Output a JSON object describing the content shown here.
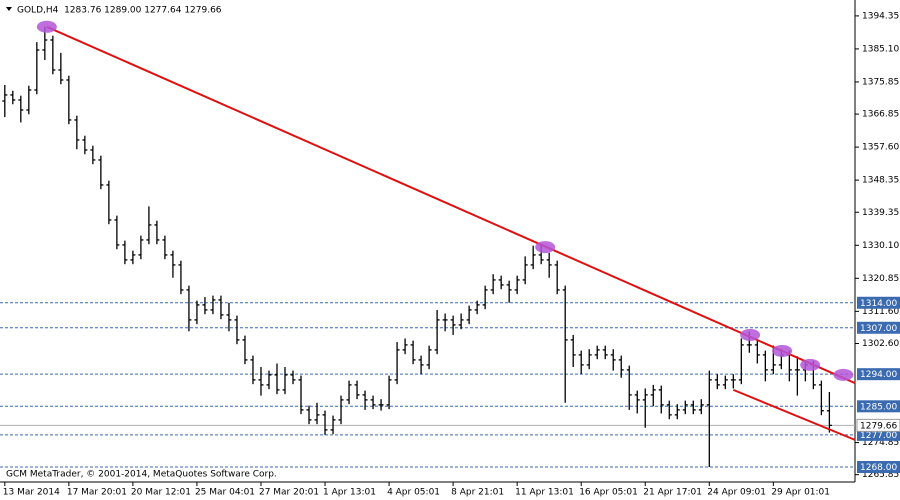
{
  "chart_data": {
    "type": "ohlc",
    "title": "GOLD,H4  1283.76 1289.00 1277.64 1279.66",
    "footer": "GCM MetaTrader, © 2001-2014, MetaQuotes Software Corp.",
    "color": "#000000",
    "categories": [
      "13 Mar 2014",
      null,
      null,
      null,
      null,
      null,
      null,
      null,
      "17 Mar 20:01",
      null,
      null,
      null,
      null,
      null,
      null,
      null,
      "20 Mar 12:01",
      null,
      null,
      null,
      null,
      null,
      null,
      null,
      "25 Mar 04:01",
      null,
      null,
      null,
      null,
      null,
      null,
      null,
      "27 Mar 20:01",
      null,
      null,
      null,
      null,
      null,
      null,
      null,
      "1 Apr 13:01",
      null,
      null,
      null,
      null,
      null,
      null,
      null,
      "4 Apr 05:01",
      null,
      null,
      null,
      null,
      null,
      null,
      null,
      "8 Apr 21:01",
      null,
      null,
      null,
      null,
      null,
      null,
      null,
      "11 Apr 13:01",
      null,
      null,
      null,
      null,
      null,
      null,
      null,
      "16 Apr 05:01",
      null,
      null,
      null,
      null,
      null,
      null,
      null,
      "21 Apr 17:01",
      null,
      null,
      null,
      null,
      null,
      null,
      null,
      "24 Apr 09:01",
      null,
      null,
      null,
      null,
      null,
      null,
      null,
      "29 Apr 01:01",
      null,
      null,
      null,
      null,
      null,
      null,
      null
    ],
    "open": [
      1370.5,
      1372.2,
      1370.8,
      1368.0,
      1373.6,
      1384.8,
      1387.6,
      1379.2,
      1376.4,
      1365.2,
      1359.6,
      1356.8,
      1354.0,
      1347.0,
      1337.2,
      1330.2,
      1326.0,
      1327.4,
      1331.6,
      1335.8,
      1331.6,
      1327.4,
      1324.6,
      1317.6,
      1309.2,
      1313.4,
      1312.0,
      1314.8,
      1310.6,
      1309.2,
      1303.6,
      1298.0,
      1292.4,
      1291.0,
      1293.8,
      1289.6,
      1293.8,
      1292.4,
      1284.0,
      1281.2,
      1282.6,
      1278.4,
      1281.2,
      1286.8,
      1291.0,
      1288.2,
      1286.8,
      1285.4,
      1285.4,
      1292.4,
      1300.8,
      1302.2,
      1298.0,
      1296.6,
      1300.8,
      1309.2,
      1309.2,
      1307.8,
      1309.2,
      1312.0,
      1313.4,
      1317.6,
      1320.4,
      1319.0,
      1317.6,
      1320.4,
      1324.6,
      1327.4,
      1326.0,
      1324.6,
      1317.6,
      1303.6,
      1299.4,
      1296.6,
      1299.4,
      1300.8,
      1299.4,
      1298.0,
      1295.2,
      1288.2,
      1286.8,
      1288.2,
      1289.6,
      1285.4,
      1282.6,
      1284.0,
      1285.4,
      1284.0,
      1285.4,
      1292.4,
      1291.0,
      1292.4,
      1292.4,
      1302.2,
      1302.2,
      1299.4,
      1295.2,
      1296.6,
      1299.4,
      1295.2,
      1295.2,
      1296.6,
      1291.0,
      1283.76
    ],
    "high": [
      1375.0,
      1373.4,
      1372.0,
      1374.8,
      1387.0,
      1391.3,
      1388.8,
      1384.0,
      1377.6,
      1366.4,
      1360.8,
      1358.0,
      1355.2,
      1348.2,
      1338.4,
      1331.4,
      1328.6,
      1332.8,
      1341.0,
      1337.0,
      1332.8,
      1328.6,
      1325.8,
      1318.8,
      1314.6,
      1315.6,
      1316.0,
      1316.0,
      1314.0,
      1310.4,
      1304.8,
      1299.2,
      1296.0,
      1295.0,
      1297.0,
      1296.0,
      1295.0,
      1293.6,
      1285.2,
      1286.0,
      1283.8,
      1282.4,
      1288.0,
      1292.2,
      1292.2,
      1289.4,
      1288.0,
      1287.0,
      1293.6,
      1303.0,
      1304.0,
      1303.4,
      1299.2,
      1302.0,
      1312.0,
      1311.0,
      1310.4,
      1311.0,
      1313.2,
      1314.6,
      1318.8,
      1322.0,
      1321.6,
      1320.2,
      1321.6,
      1327.0,
      1330.0,
      1330.0,
      1328.0,
      1325.8,
      1318.8,
      1305.0,
      1300.6,
      1301.0,
      1302.0,
      1302.0,
      1301.0,
      1299.2,
      1296.4,
      1289.4,
      1290.0,
      1291.0,
      1290.8,
      1286.6,
      1285.6,
      1286.6,
      1286.6,
      1287.0,
      1295.0,
      1294.0,
      1293.6,
      1294.0,
      1304.0,
      1306.0,
      1303.4,
      1300.6,
      1302.0,
      1301.0,
      1300.6,
      1299.0,
      1298.0,
      1297.8,
      1292.2,
      1289.0
    ],
    "low": [
      1366.0,
      1369.6,
      1364.5,
      1366.8,
      1372.4,
      1382.0,
      1378.0,
      1375.2,
      1364.0,
      1357.0,
      1355.6,
      1352.8,
      1345.8,
      1336.0,
      1329.0,
      1324.8,
      1324.8,
      1326.2,
      1330.4,
      1330.4,
      1326.2,
      1321.0,
      1316.4,
      1306.0,
      1308.0,
      1310.8,
      1310.8,
      1309.4,
      1306.0,
      1302.4,
      1296.8,
      1291.2,
      1288.0,
      1289.8,
      1288.4,
      1288.4,
      1291.2,
      1282.8,
      1280.0,
      1280.0,
      1277.0,
      1277.2,
      1280.0,
      1285.6,
      1287.0,
      1284.0,
      1284.2,
      1283.8,
      1284.2,
      1291.2,
      1299.6,
      1296.8,
      1294.0,
      1295.4,
      1299.6,
      1306.0,
      1305.0,
      1306.6,
      1308.0,
      1310.8,
      1312.2,
      1316.4,
      1317.8,
      1314.0,
      1316.4,
      1319.2,
      1323.4,
      1324.8,
      1321.0,
      1316.4,
      1286.0,
      1296.0,
      1294.0,
      1295.4,
      1298.2,
      1298.2,
      1295.0,
      1293.0,
      1284.0,
      1283.0,
      1279.0,
      1285.0,
      1283.0,
      1281.4,
      1281.4,
      1282.8,
      1282.8,
      1282.8,
      1268.0,
      1289.8,
      1289.8,
      1290.0,
      1291.2,
      1300.0,
      1297.0,
      1292.0,
      1294.0,
      1295.4,
      1292.0,
      1288.0,
      1292.0,
      1289.8,
      1282.5,
      1277.64
    ],
    "close": [
      1372.2,
      1370.8,
      1368.0,
      1373.6,
      1384.8,
      1387.6,
      1379.2,
      1376.4,
      1365.2,
      1359.6,
      1356.8,
      1354.0,
      1347.0,
      1337.2,
      1330.2,
      1326.0,
      1327.4,
      1331.6,
      1335.8,
      1331.6,
      1327.4,
      1324.6,
      1317.6,
      1309.2,
      1313.4,
      1312.0,
      1314.8,
      1310.6,
      1309.2,
      1303.6,
      1298.0,
      1292.4,
      1291.0,
      1293.8,
      1289.6,
      1293.8,
      1292.4,
      1284.0,
      1281.2,
      1282.6,
      1278.4,
      1281.2,
      1286.8,
      1291.0,
      1288.2,
      1286.8,
      1285.4,
      1285.4,
      1292.4,
      1300.8,
      1302.2,
      1298.0,
      1296.6,
      1300.8,
      1309.2,
      1309.2,
      1307.8,
      1309.2,
      1312.0,
      1313.4,
      1317.6,
      1320.4,
      1319.0,
      1317.6,
      1320.4,
      1324.6,
      1327.4,
      1326.0,
      1324.6,
      1317.6,
      1303.6,
      1299.4,
      1296.6,
      1299.4,
      1300.8,
      1299.4,
      1298.0,
      1295.2,
      1288.2,
      1286.8,
      1288.2,
      1289.6,
      1285.4,
      1282.6,
      1284.0,
      1285.4,
      1284.0,
      1285.4,
      1292.4,
      1291.0,
      1292.4,
      1292.4,
      1302.2,
      1302.2,
      1299.4,
      1295.2,
      1296.6,
      1299.4,
      1295.2,
      1295.2,
      1296.6,
      1291.0,
      1283.76,
      1279.66
    ],
    "xlim": [
      -0.6,
      106.2
    ],
    "ylim": [
      1263.8,
      1398.8
    ],
    "yticks": [
      1394.35,
      {
        "value": 1385.1,
        "label": "1385.10"
      },
      1375.85,
      1366.85,
      {
        "value": 1357.6,
        "label": "1357.60"
      },
      1348.35,
      1339.35,
      {
        "value": 1330.1,
        "label": "1330.10"
      },
      1320.85,
      {
        "value": 1311.6,
        "label": "1311.60"
      },
      {
        "value": 1302.6,
        "label": "1302.60"
      },
      1274.85,
      1265.85
    ],
    "levels": [
      {
        "value": 1314,
        "label": "1314.00"
      },
      {
        "value": 1307,
        "label": "1307.00"
      },
      {
        "value": 1294,
        "label": "1294.00"
      },
      {
        "value": 1285,
        "label": "1285.00"
      },
      {
        "value": 1277,
        "label": "1277.00"
      },
      {
        "value": 1268,
        "label": "1268.00"
      }
    ],
    "level_color": "#3a6ab0",
    "current_price": {
      "value": 1279.66,
      "label": "1279.66"
    },
    "trendlines": [
      {
        "x": [
          5.25,
          106.2
        ],
        "y": [
          1391.3,
          1291.5
        ]
      },
      {
        "x": [
          91,
          106.2
        ],
        "y": [
          1289.6,
          1275.6
        ]
      }
    ],
    "trend_color": "#e01010",
    "markers": {
      "x": [
        5.25,
        67.5,
        93.1,
        97.1,
        100.6,
        104.75
      ],
      "y": [
        1391.3,
        1329.6,
        1305.0,
        1300.5,
        1296.6,
        1293.8
      ]
    },
    "marker_color": "#b455d8"
  }
}
